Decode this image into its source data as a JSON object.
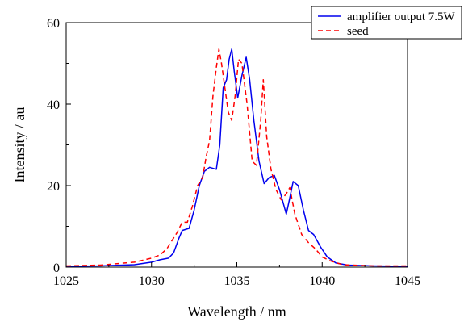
{
  "chart_data": {
    "type": "line",
    "title": "",
    "xlabel": "Wavelength / nm",
    "ylabel": "Intensity / au",
    "xlim": [
      1025,
      1045
    ],
    "ylim": [
      0,
      60
    ],
    "x_ticks": [
      1025,
      1030,
      1035,
      1040,
      1045
    ],
    "y_ticks": [
      0,
      20,
      40,
      60
    ],
    "grid": false,
    "legend_position": "top-right",
    "series": [
      {
        "name": "amplifier output 7.5W",
        "color": "#0000ee",
        "style": "solid",
        "points": [
          [
            1025,
            0.2
          ],
          [
            1027,
            0.3
          ],
          [
            1029,
            0.6
          ],
          [
            1030,
            1.2
          ],
          [
            1030.5,
            1.8
          ],
          [
            1031,
            2.2
          ],
          [
            1031.3,
            3.5
          ],
          [
            1031.6,
            7
          ],
          [
            1031.8,
            9
          ],
          [
            1032.2,
            9.5
          ],
          [
            1032.5,
            14
          ],
          [
            1032.8,
            20
          ],
          [
            1033.1,
            23.5
          ],
          [
            1033.4,
            24.5
          ],
          [
            1033.8,
            24
          ],
          [
            1034.0,
            30
          ],
          [
            1034.2,
            44
          ],
          [
            1034.4,
            46
          ],
          [
            1034.55,
            51
          ],
          [
            1034.7,
            53.5
          ],
          [
            1034.85,
            48
          ],
          [
            1035.05,
            41.5
          ],
          [
            1035.3,
            47
          ],
          [
            1035.55,
            51.5
          ],
          [
            1035.75,
            46
          ],
          [
            1036.0,
            36
          ],
          [
            1036.3,
            26
          ],
          [
            1036.6,
            20.5
          ],
          [
            1036.9,
            22
          ],
          [
            1037.2,
            22.5
          ],
          [
            1037.5,
            19
          ],
          [
            1037.9,
            13
          ],
          [
            1038.1,
            17
          ],
          [
            1038.3,
            21
          ],
          [
            1038.6,
            20
          ],
          [
            1038.9,
            14
          ],
          [
            1039.2,
            9
          ],
          [
            1039.5,
            8
          ],
          [
            1039.9,
            5
          ],
          [
            1040.3,
            2.5
          ],
          [
            1040.8,
            1
          ],
          [
            1041.5,
            0.5
          ],
          [
            1043,
            0.3
          ],
          [
            1045,
            0.2
          ]
        ]
      },
      {
        "name": "seed",
        "color": "#ff0000",
        "style": "dashed",
        "points": [
          [
            1025,
            0.3
          ],
          [
            1027,
            0.5
          ],
          [
            1029,
            1.2
          ],
          [
            1030,
            2.2
          ],
          [
            1030.5,
            3
          ],
          [
            1030.9,
            4.5
          ],
          [
            1031.2,
            6.5
          ],
          [
            1031.5,
            8.5
          ],
          [
            1031.8,
            11
          ],
          [
            1032.1,
            11
          ],
          [
            1032.4,
            15
          ],
          [
            1032.7,
            20
          ],
          [
            1033.0,
            22
          ],
          [
            1033.2,
            27
          ],
          [
            1033.4,
            31
          ],
          [
            1033.6,
            42
          ],
          [
            1033.8,
            49
          ],
          [
            1033.95,
            53.5
          ],
          [
            1034.1,
            50
          ],
          [
            1034.3,
            44
          ],
          [
            1034.5,
            38
          ],
          [
            1034.7,
            36
          ],
          [
            1034.9,
            42
          ],
          [
            1035.1,
            51
          ],
          [
            1035.3,
            50
          ],
          [
            1035.6,
            40
          ],
          [
            1035.9,
            26
          ],
          [
            1036.15,
            25
          ],
          [
            1036.4,
            36
          ],
          [
            1036.55,
            46
          ],
          [
            1036.75,
            32
          ],
          [
            1037.0,
            24
          ],
          [
            1037.3,
            19
          ],
          [
            1037.6,
            16.5
          ],
          [
            1037.9,
            18
          ],
          [
            1038.1,
            19.5
          ],
          [
            1038.4,
            13
          ],
          [
            1038.8,
            8
          ],
          [
            1039.2,
            6
          ],
          [
            1039.6,
            4.5
          ],
          [
            1040.0,
            2.5
          ],
          [
            1040.5,
            1.5
          ],
          [
            1041.2,
            0.6
          ],
          [
            1043,
            0.3
          ],
          [
            1045,
            0.3
          ]
        ]
      }
    ]
  }
}
